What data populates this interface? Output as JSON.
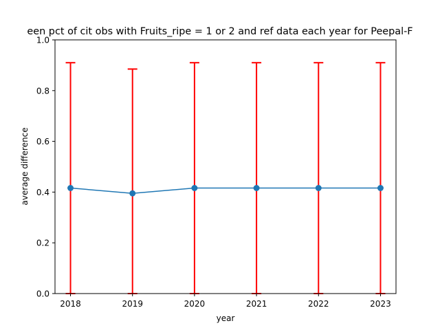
{
  "chart_data": {
    "type": "line",
    "title": "een pct of cit obs with Fruits_ripe = 1 or 2 and ref data each year for Peepal-F",
    "xlabel": "year",
    "ylabel": "average difference",
    "x": [
      2018,
      2019,
      2020,
      2021,
      2022,
      2023
    ],
    "x_tick_labels": [
      "2018",
      "2019",
      "2020",
      "2021",
      "2022",
      "2023"
    ],
    "y_ticks": [
      0.0,
      0.2,
      0.4,
      0.6,
      0.8,
      1.0
    ],
    "y_tick_labels": [
      "0.0",
      "0.2",
      "0.4",
      "0.6",
      "0.8",
      "1.0"
    ],
    "ylim": [
      0,
      1
    ],
    "xlim": [
      2017.75,
      2023.25
    ],
    "grid": false,
    "series": [
      {
        "values": [
          0.416,
          0.395,
          0.416,
          0.416,
          0.416,
          0.416
        ],
        "error_upper": [
          0.91,
          0.885,
          0.91,
          0.91,
          0.91,
          0.91
        ],
        "error_lower": [
          0.0,
          0.0,
          0.0,
          0.0,
          0.0,
          0.0
        ],
        "line_color": "#1f77b4",
        "error_color": "#ff0000"
      }
    ]
  }
}
